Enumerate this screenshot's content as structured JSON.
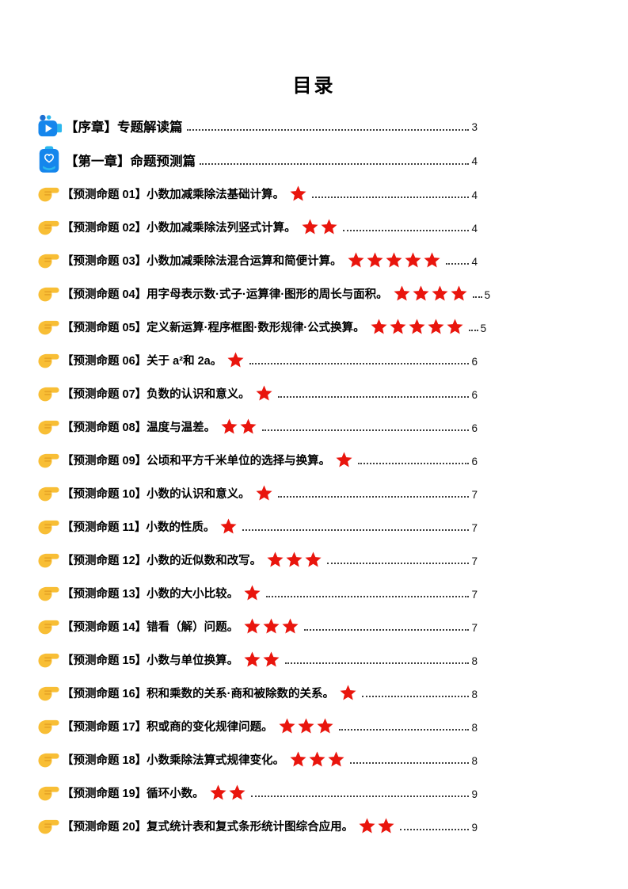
{
  "page": {
    "title": "目录"
  },
  "colors": {
    "star_red": "#E9150D",
    "icon_blue": "#1586EC",
    "icon_dark_blue": "#1D6FD2",
    "icon_cyan": "#2BB7EE",
    "hand_yellow": "#F8BE35",
    "leader_gray": "#3D3D3D"
  },
  "icons": {
    "chapter1": "video-camera-icon",
    "chapter2": "hand-heart-icon",
    "item_bullet": "pointing-hand-icon",
    "rating": "star-icon"
  },
  "chapters": [
    {
      "icon": "video-camera-icon",
      "label": "【序章】专题解读篇",
      "page": "3"
    },
    {
      "icon": "hand-heart-icon",
      "label": "【第一章】命题预测篇",
      "page": "4"
    }
  ],
  "items": [
    {
      "label": "【预测命题 01】小数加减乘除法基础计算。",
      "stars": 1,
      "page": "4"
    },
    {
      "label": "【预测命题 02】小数加减乘除法列竖式计算。",
      "stars": 2,
      "page": "4"
    },
    {
      "label": "【预测命题 03】小数加减乘除法混合运算和简便计算。",
      "stars": 5,
      "page": "4"
    },
    {
      "label": "【预测命题 04】用字母表示数·式子·运算律·图形的周长与面积。",
      "stars": 4,
      "page": "5"
    },
    {
      "label": "【预测命题 05】定义新运算·程序框图·数形规律·公式换算。",
      "stars": 5,
      "page": "5"
    },
    {
      "label": "【预测命题 06】关于 a²和 2a。",
      "stars": 1,
      "page": "6"
    },
    {
      "label": "【预测命题 07】负数的认识和意义。",
      "stars": 1,
      "page": "6"
    },
    {
      "label": "【预测命题 08】温度与温差。",
      "stars": 2,
      "page": "6"
    },
    {
      "label": "【预测命题 09】公顷和平方千米单位的选择与换算。",
      "stars": 1,
      "page": "6"
    },
    {
      "label": "【预测命题 10】小数的认识和意义。",
      "stars": 1,
      "page": "7"
    },
    {
      "label": "【预测命题 11】小数的性质。",
      "stars": 1,
      "page": "7"
    },
    {
      "label": "【预测命题 12】小数的近似数和改写。",
      "stars": 3,
      "page": "7"
    },
    {
      "label": "【预测命题 13】小数的大小比较。",
      "stars": 1,
      "page": "7"
    },
    {
      "label": "【预测命题 14】错看（解）问题。",
      "stars": 3,
      "page": "7"
    },
    {
      "label": "【预测命题 15】小数与单位换算。",
      "stars": 2,
      "page": "8"
    },
    {
      "label": "【预测命题 16】积和乘数的关系·商和被除数的关系。",
      "stars": 1,
      "page": "8"
    },
    {
      "label": "【预测命题 17】积或商的变化规律问题。",
      "stars": 3,
      "page": "8"
    },
    {
      "label": "【预测命题 18】小数乘除法算式规律变化。",
      "stars": 3,
      "page": "8"
    },
    {
      "label": "【预测命题 19】循环小数。",
      "stars": 2,
      "page": "9"
    },
    {
      "label": "【预测命题 20】复式统计表和复式条形统计图综合应用。",
      "stars": 2,
      "page": "9"
    }
  ]
}
